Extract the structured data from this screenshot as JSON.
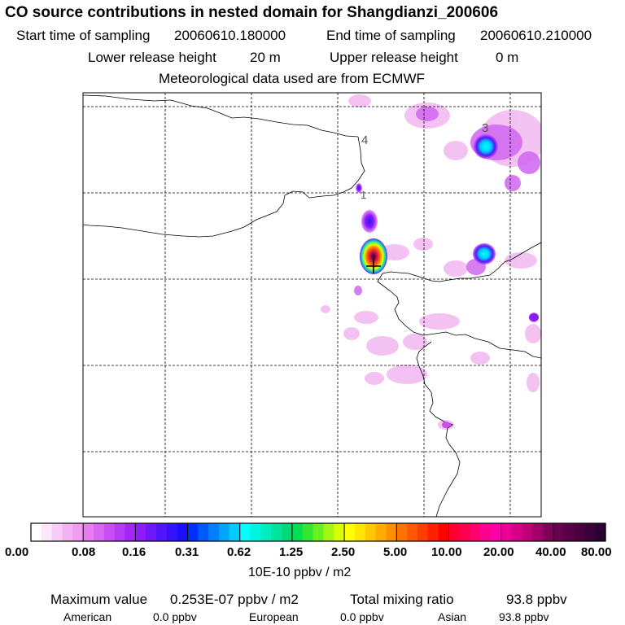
{
  "header": {
    "title": "CO  source contributions in nested domain for Shangdianzi_200606",
    "start_label": "Start time of sampling",
    "start_value": "20060610.180000",
    "end_label": "End time of sampling",
    "end_value": "20060610.210000",
    "lower_label": "Lower release height",
    "lower_value": "20 m",
    "upper_label": "Upper release height",
    "upper_value": "0 m",
    "met_line": "Meteorological data used are from ECMWF"
  },
  "chart_data": {
    "type": "heatmap",
    "title": "CO  source contributions in nested domain for Shangdianzi_200606",
    "grid": true,
    "map_labels": [
      "1",
      "3",
      "4"
    ],
    "colorbar": {
      "unit_label": "10E-10 ppbv / m2",
      "tick_labels": [
        "0.00",
        "0.08",
        "0.16",
        "0.31",
        "0.62",
        "1.25",
        "2.50",
        "5.00",
        "10.00",
        "20.00",
        "40.00",
        "80.00"
      ],
      "tick_values": [
        0.0,
        0.08,
        0.16,
        0.31,
        0.62,
        1.25,
        2.5,
        5.0,
        10.0,
        20.0,
        40.0,
        80.0
      ],
      "segment_colors": [
        [
          "#ffffff",
          "#fce6fc",
          "#f8ccf8",
          "#f4b2f4",
          "#f09af0"
        ],
        [
          "#e67ef0",
          "#d966f2",
          "#c94ff4",
          "#b73af6",
          "#a326f8"
        ],
        [
          "#8c1cfa",
          "#6f18fa",
          "#5214fb",
          "#3512fc",
          "#1a10fd"
        ],
        [
          "#0030fe",
          "#0058ff",
          "#0080ff",
          "#00a6ff",
          "#00ccff"
        ],
        [
          "#00ffff",
          "#00f5e0",
          "#00ecbe",
          "#00e39c",
          "#00da7a"
        ],
        [
          "#00e050",
          "#33e830",
          "#66f020",
          "#a0f810",
          "#d8ff00"
        ],
        [
          "#ffff00",
          "#ffe400",
          "#ffc800",
          "#ffac00",
          "#ff9000"
        ],
        [
          "#ff7400",
          "#ff5800",
          "#ff3c00",
          "#ff2000",
          "#ff0000"
        ],
        [
          "#ff0030",
          "#ff0050",
          "#ff0070",
          "#ff0090",
          "#ff00a8"
        ],
        [
          "#ee0098",
          "#d80088",
          "#c00078",
          "#a00068",
          "#800058"
        ],
        [
          "#6a0050",
          "#5a0048",
          "#4a0040",
          "#3a0038",
          "#2a0030"
        ]
      ]
    },
    "hotspots": [
      {
        "lon": 0.634,
        "lat": 0.538,
        "level": 11
      },
      {
        "lon": 0.634,
        "lat": 0.58,
        "level": 7
      },
      {
        "lon": 0.626,
        "lat": 0.73,
        "level": 5
      },
      {
        "lon": 0.873,
        "lat": 0.88,
        "level": 5
      },
      {
        "lon": 0.873,
        "lat": 0.625,
        "level": 5
      },
      {
        "lon": 0.603,
        "lat": 0.767,
        "level": 1
      },
      {
        "lon": 0.76,
        "lat": 0.96,
        "level": 1
      },
      {
        "lon": 0.97,
        "lat": 0.88,
        "level": 1
      },
      {
        "lon": 0.98,
        "lat": 0.477,
        "level": 2
      },
      {
        "lon": 0.62,
        "lat": 0.515,
        "level": 2
      }
    ]
  },
  "footer": {
    "max_label": "Maximum value",
    "max_value": "0.253E-07 ppbv / m2",
    "total_label": "Total mixing ratio",
    "total_value": "93.8 ppbv",
    "american_label": "American",
    "american_value": "0.0 ppbv",
    "european_label": "European",
    "european_value": "0.0 ppbv",
    "asian_label": "Asian",
    "asian_value": "93.8 ppbv"
  }
}
